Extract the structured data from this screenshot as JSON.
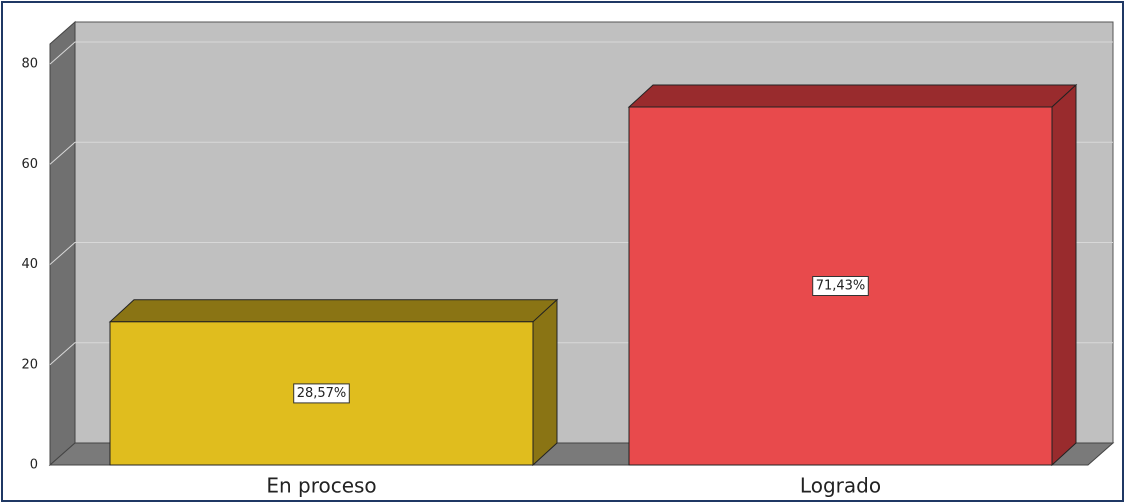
{
  "chart_data": {
    "type": "bar3d",
    "categories": [
      "En proceso",
      "Logrado"
    ],
    "values": [
      28.57,
      71.43
    ],
    "value_labels": [
      "28,57%",
      "71,43%"
    ],
    "colors": [
      "#e0bd1e",
      "#e84a4c"
    ],
    "side_colors": [
      "#8a7414",
      "#992b2d"
    ],
    "ylim": [
      0,
      84
    ],
    "yticks": [
      0,
      20,
      40,
      60,
      80
    ],
    "grid": true
  }
}
